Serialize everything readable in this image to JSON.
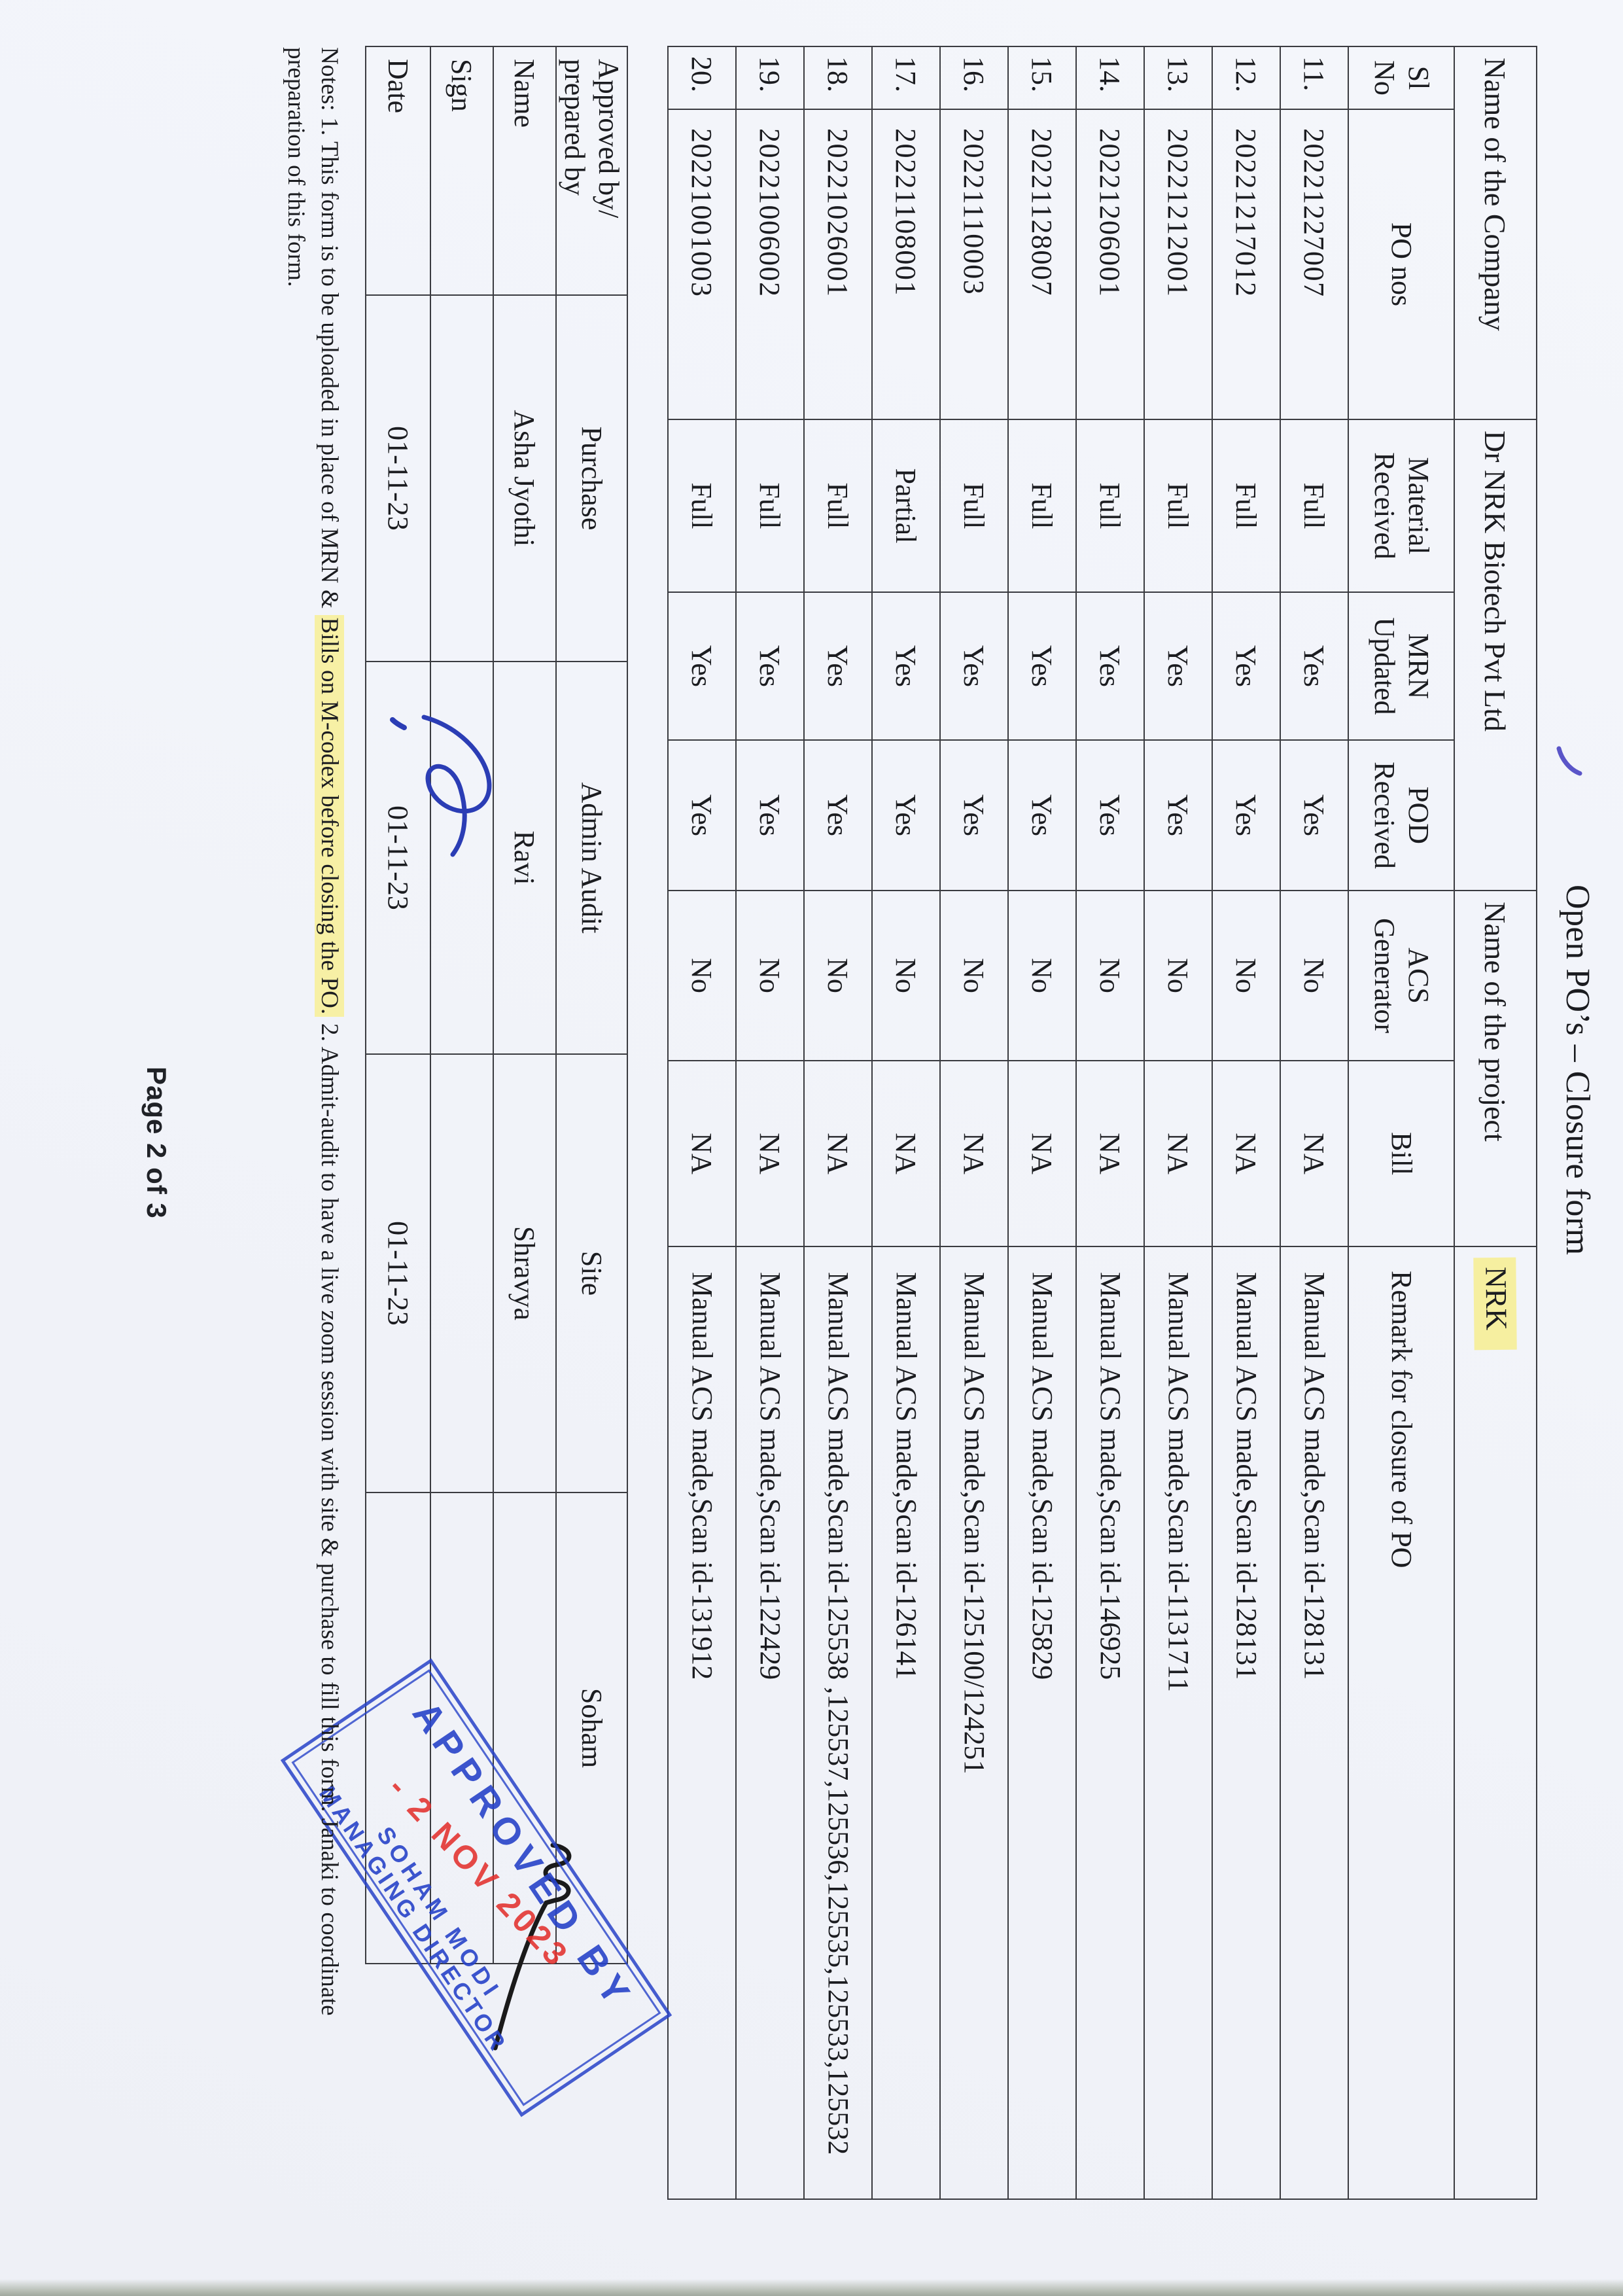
{
  "page": {
    "title": "Open PO’s – Closure form",
    "footer": "Page 2 of 3"
  },
  "table": {
    "super_headers": [
      "Name of the Company",
      "Dr NRK Biotech Pvt Ltd",
      "Name of the project",
      "NRK"
    ],
    "headers": [
      "Sl\nNo",
      "PO nos",
      "Material\nReceived",
      "MRN\nUpdated",
      "POD\nReceived",
      "ACS\nGenerator",
      "Bill",
      "Remark for closure of PO"
    ],
    "rows": [
      {
        "sl": "11.",
        "po": "20221227007",
        "material": "Full",
        "mrn": "Yes",
        "pod": "Yes",
        "acs": "No",
        "bill": "NA",
        "remark": "Manual ACS made,Scan id-128131"
      },
      {
        "sl": "12.",
        "po": "20221217012",
        "material": "Full",
        "mrn": "Yes",
        "pod": "Yes",
        "acs": "No",
        "bill": "NA",
        "remark": "Manual ACS made,Scan id-128131"
      },
      {
        "sl": "13.",
        "po": "20221212001",
        "material": "Full",
        "mrn": "Yes",
        "pod": "Yes",
        "acs": "No",
        "bill": "NA",
        "remark": "Manual ACS made,Scan id-1131711"
      },
      {
        "sl": "14.",
        "po": "20221206001",
        "material": "Full",
        "mrn": "Yes",
        "pod": "Yes",
        "acs": "No",
        "bill": "NA",
        "remark": "Manual ACS made,Scan id-146925"
      },
      {
        "sl": "15.",
        "po": "20221128007",
        "material": "Full",
        "mrn": "Yes",
        "pod": "Yes",
        "acs": "No",
        "bill": "NA",
        "remark": "Manual ACS made,Scan id-125829"
      },
      {
        "sl": "16.",
        "po": "20221110003",
        "material": "Full",
        "mrn": "Yes",
        "pod": "Yes",
        "acs": "No",
        "bill": "NA",
        "remark": "Manual ACS made,Scan id-125100/124251"
      },
      {
        "sl": "17.",
        "po": "20221108001",
        "material": "Partial",
        "mrn": "Yes",
        "pod": "Yes",
        "acs": "No",
        "bill": "NA",
        "remark": "Manual ACS made,Scan id-126141"
      },
      {
        "sl": "18.",
        "po": "20221026001",
        "material": "Full",
        "mrn": "Yes",
        "pod": "Yes",
        "acs": "No",
        "bill": "NA",
        "remark": "Manual ACS made,Scan id-125538 ,125537,125536,125535,125533,125532"
      },
      {
        "sl": "19.",
        "po": "20221006002",
        "material": "Full",
        "mrn": "Yes",
        "pod": "Yes",
        "acs": "No",
        "bill": "NA",
        "remark": "Manual ACS made,Scan id-122429"
      },
      {
        "sl": "20.",
        "po": "20221001003",
        "material": "Full",
        "mrn": "Yes",
        "pod": "Yes",
        "acs": "No",
        "bill": "NA",
        "remark": "Manual ACS made,Scan id-131912"
      }
    ]
  },
  "approval": {
    "corner_label": "Approved by/\nprepared by",
    "row_labels": [
      "Name",
      "Sign",
      "Date"
    ],
    "columns": [
      {
        "role": "Purchase",
        "name": "Asha Jyothi",
        "sign": "",
        "date": "01-11-23"
      },
      {
        "role": "Admin Audit",
        "name": "Ravi",
        "sign": "ravi-signature",
        "date": "01-11-23"
      },
      {
        "role": "Site",
        "name": "Shravya",
        "sign": "",
        "date": "01-11-23"
      },
      {
        "role": "Soham",
        "name": "",
        "sign": "soham-signature",
        "date": ""
      }
    ]
  },
  "notes": {
    "prefix": "Notes: 1. This form is to be uploaded in place of MRN & ",
    "highlight": "Bills on M-codex before closing the PO.",
    "suffix": " 2. Admit-audit to have a live zoom session with site & purchase to fill this form. Janaki to coordinate",
    "line2": "preparation of this form."
  },
  "stamp": {
    "line1": "APPROVED BY",
    "date": "- 2 NOV 2023",
    "line2": "SOHAM MODI",
    "line3": "MANAGING DIRECTOR"
  },
  "colors": {
    "paper": "#f2f4f9",
    "ink": "#1b1c20",
    "table_line": "#3a3b40",
    "highlight": "#f6efa0",
    "stamp_blue": "#2742c8",
    "stamp_red": "#e2302d",
    "signature_blue": "#2b3db5",
    "signature_black": "#1a1a1a"
  }
}
